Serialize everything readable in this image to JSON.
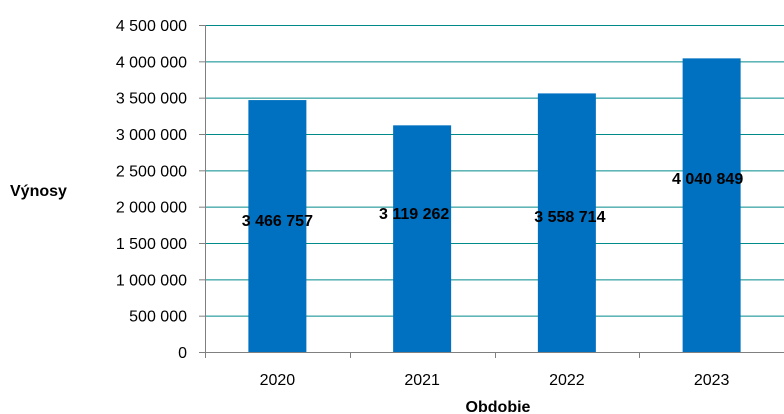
{
  "chart_data": {
    "type": "bar",
    "categories": [
      "2020",
      "2021",
      "2022",
      "2023"
    ],
    "values": [
      3466757,
      3119262,
      3558714,
      4040849
    ],
    "data_labels": [
      "3 466 757",
      "3 119 262",
      "3 558 714",
      "4 040 849"
    ],
    "xlabel": "Obdobie",
    "ylabel": "Výnosy",
    "ylim": [
      0,
      4500000
    ],
    "yticks": [
      0,
      500000,
      1000000,
      1500000,
      2000000,
      2500000,
      3000000,
      3500000,
      4000000,
      4500000
    ],
    "ytick_labels": [
      "0",
      "500 000",
      "1 000 000",
      "1 500 000",
      "2 000 000",
      "2 500 000",
      "3 000 000",
      "3 500 000",
      "4 000 000",
      "4 500 000"
    ],
    "grid": true,
    "legend": "none",
    "colors": {
      "bar": "#0070C0",
      "grid": "#008B8B",
      "axis": "#808080"
    }
  }
}
